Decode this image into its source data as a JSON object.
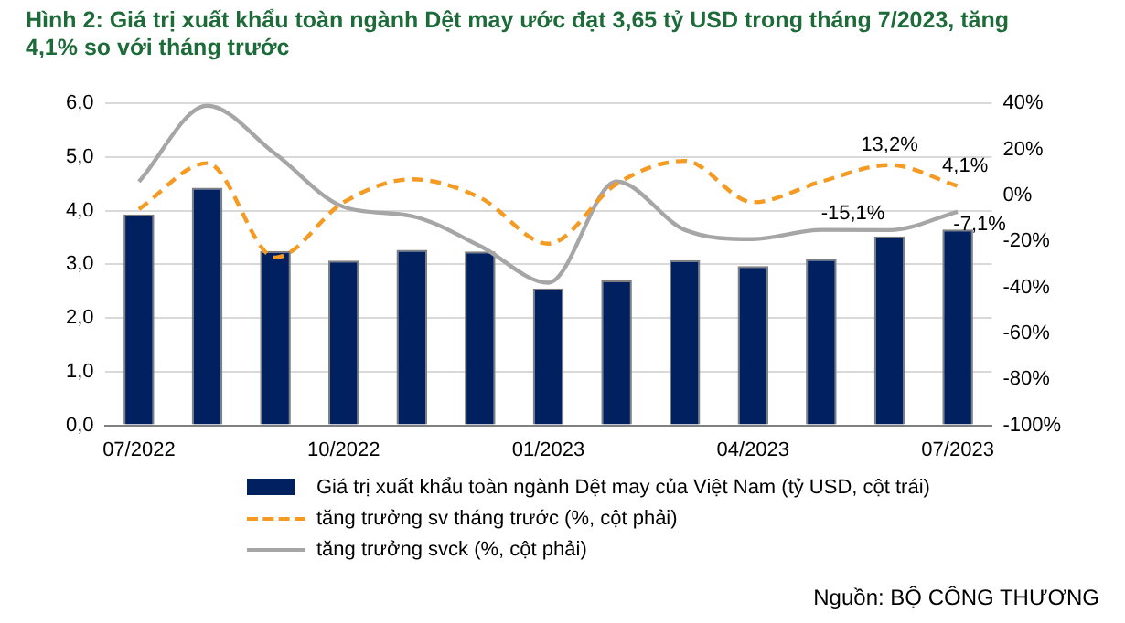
{
  "chart_data": {
    "type": "bar",
    "title": "Hình 2: Giá trị xuất khẩu toàn ngành Dệt may ước đạt 3,65 tỷ USD trong tháng 7/2023, tăng 4,1% so với tháng trước",
    "categories": [
      "07/2022",
      null,
      null,
      "10/2022",
      null,
      null,
      "01/2023",
      null,
      null,
      "04/2023",
      null,
      null,
      "07/2023"
    ],
    "series": [
      {
        "name": "Giá trị xuất khẩu toàn ngành Dệt may của Việt Nam (tỷ USD, cột trái)",
        "color": "#002060",
        "values": [
          3.93,
          4.43,
          3.25,
          3.07,
          3.27,
          3.24,
          2.55,
          2.7,
          3.08,
          2.97,
          3.1,
          3.52,
          3.65
        ]
      },
      {
        "name": "tăng trưởng sv tháng trước (%, cột phải)",
        "type": "line",
        "axis": "y2",
        "line_style": "dashed",
        "color": "#f59a23",
        "values": [
          -6,
          14,
          -27,
          -3,
          7,
          -1,
          -21,
          5,
          15,
          -3,
          6,
          13.2,
          4.1
        ],
        "value_labels": [
          null,
          null,
          null,
          null,
          null,
          null,
          null,
          null,
          null,
          null,
          null,
          "13,2%",
          "4,1%"
        ]
      },
      {
        "name": "tăng trưởng svck (%, cột phải)",
        "type": "line",
        "axis": "y2",
        "line_style": "solid",
        "color": "#a6a6a6",
        "values": [
          6,
          39,
          18,
          -5,
          -9,
          -22,
          -38,
          6,
          -15,
          -19,
          -15,
          -15.1,
          -7.1
        ],
        "value_labels": [
          null,
          null,
          null,
          null,
          null,
          null,
          null,
          null,
          null,
          null,
          null,
          "-15,1%",
          "-7,1%"
        ]
      }
    ],
    "ylim": [
      0,
      6
    ],
    "yticks": [
      {
        "value": 0,
        "label": "0,0"
      },
      {
        "value": 1,
        "label": "1,0"
      },
      {
        "value": 2,
        "label": "2,0"
      },
      {
        "value": 3,
        "label": "3,0"
      },
      {
        "value": 4,
        "label": "4,0"
      },
      {
        "value": 5,
        "label": "5,0"
      },
      {
        "value": 6,
        "label": "6,0"
      }
    ],
    "y2lim": [
      -100,
      40
    ],
    "y2ticks": [
      {
        "value": -100,
        "label": "-100%"
      },
      {
        "value": -80,
        "label": "-80%"
      },
      {
        "value": -60,
        "label": "-60%"
      },
      {
        "value": -40,
        "label": "-40%"
      },
      {
        "value": -20,
        "label": "-20%"
      },
      {
        "value": 0,
        "label": "0%"
      },
      {
        "value": 20,
        "label": "20%"
      },
      {
        "value": 40,
        "label": "40%"
      }
    ],
    "grid": "y",
    "legend": "bottom",
    "marker": "none",
    "annotations": [
      "Nguồn: BỘ CÔNG THƯƠNG"
    ]
  }
}
